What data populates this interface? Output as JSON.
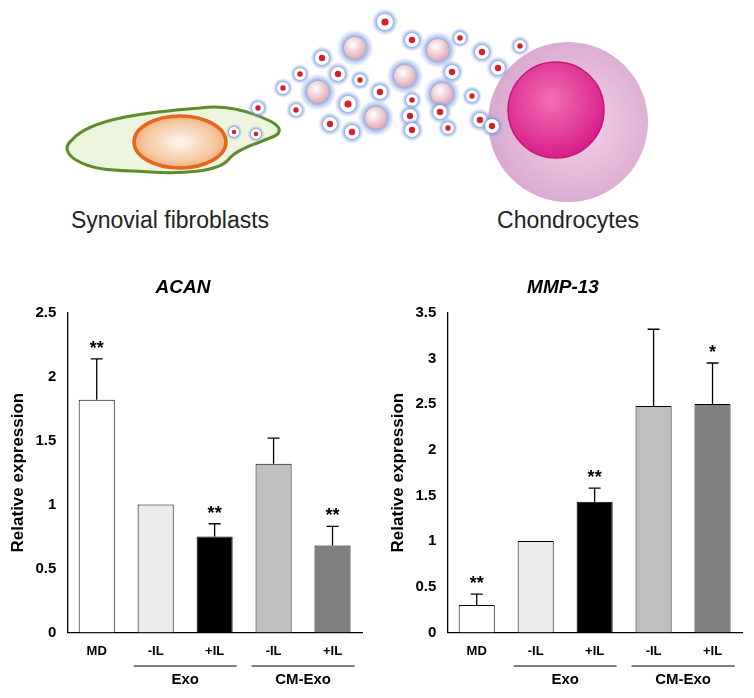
{
  "illustration": {
    "labels": [
      "Synovial fibroblasts",
      "Chondrocytes"
    ]
  },
  "chart_data": [
    {
      "type": "bar",
      "title": "ACAN",
      "y_label": "Relative expression",
      "categories": [
        "MD",
        "-IL",
        "+IL",
        "-IL",
        "+IL"
      ],
      "groups": [
        null,
        "Exo",
        "Exo",
        "CM-Exo",
        "CM-Exo"
      ],
      "values": [
        1.82,
        1,
        0.75,
        1.32,
        0.68
      ],
      "errors": [
        0.32,
        null,
        0.1,
        0.2,
        0.15
      ],
      "annotations": [
        "**",
        null,
        "**",
        null,
        "**"
      ],
      "colors": [
        "#ffffff",
        "#ebebeb",
        "#000000",
        "#bfbfbf",
        "#7f7f7f"
      ],
      "ylim": [
        0,
        2.5
      ],
      "yticks": [
        0,
        0.5,
        1,
        1.5,
        2,
        2.5
      ],
      "grid": false
    },
    {
      "type": "bar",
      "title": "MMP-13",
      "y_label": "Relative expression",
      "categories": [
        "MD",
        "-IL",
        "+IL",
        "-IL",
        "+IL"
      ],
      "groups": [
        null,
        "Exo",
        "Exo",
        "CM-Exo",
        "CM-Exo"
      ],
      "values": [
        0.3,
        1,
        1.43,
        2.48,
        2.5
      ],
      "errors": [
        0.12,
        null,
        0.15,
        0.84,
        0.45
      ],
      "annotations": [
        "**",
        null,
        "**",
        null,
        "*"
      ],
      "colors": [
        "#ffffff",
        "#ebebeb",
        "#000000",
        "#bfbfbf",
        "#7f7f7f"
      ],
      "ylim": [
        0,
        3.5
      ],
      "yticks": [
        0,
        0.5,
        1,
        1.5,
        2,
        2.5,
        3,
        3.5
      ],
      "grid": false
    }
  ]
}
